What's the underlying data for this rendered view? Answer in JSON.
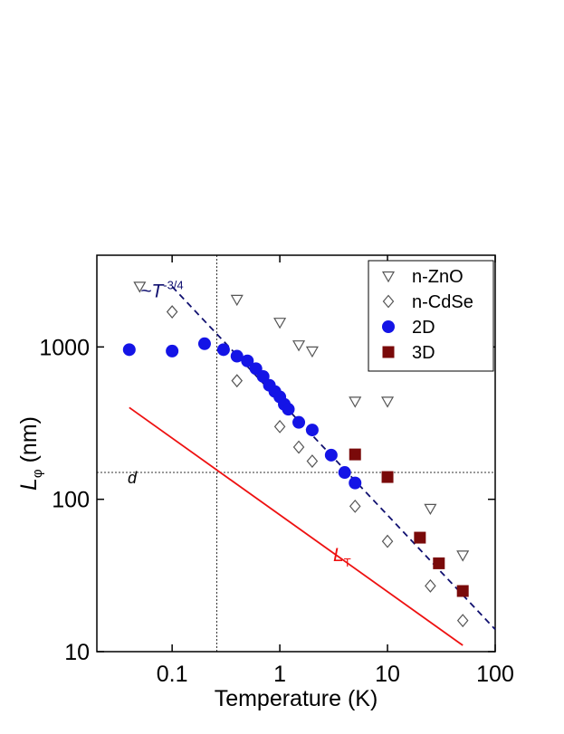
{
  "chart_data": {
    "type": "scatter",
    "x_label": "Temperature (K)",
    "y_label": {
      "main": "L",
      "sub": "φ",
      "unit": " (nm)"
    },
    "log_x": true,
    "log_y": true,
    "xlim": [
      0.02,
      100
    ],
    "ylim": [
      10,
      4000
    ],
    "xticks": [
      0.1,
      1,
      10,
      100
    ],
    "yticks": [
      10,
      100,
      1000
    ],
    "legend": "top-right",
    "series": [
      {
        "name": "n-ZnO",
        "marker": "triangle-down",
        "color": "#555555",
        "x": [
          0.05,
          0.4,
          1,
          1.5,
          2,
          5,
          10,
          25,
          50
        ],
        "values": [
          2500,
          2050,
          1450,
          1030,
          940,
          440,
          440,
          87,
          43
        ]
      },
      {
        "name": "n-CdSe",
        "marker": "diamond",
        "color": "#555555",
        "x": [
          0.1,
          0.4,
          1,
          1.5,
          2,
          5,
          10,
          25,
          50
        ],
        "values": [
          1700,
          600,
          300,
          220,
          178,
          90,
          53,
          27,
          16
        ]
      },
      {
        "name": "2D",
        "marker": "circle",
        "color": "#1414e6",
        "x": [
          0.04,
          0.1,
          0.2,
          0.3,
          0.4,
          0.5,
          0.6,
          0.7,
          0.8,
          0.9,
          1,
          1.1,
          1.2,
          1.5,
          2,
          3,
          4,
          5
        ],
        "values": [
          960,
          940,
          1050,
          960,
          870,
          810,
          720,
          640,
          560,
          510,
          470,
          420,
          390,
          320,
          285,
          195,
          150,
          128
        ]
      },
      {
        "name": "3D",
        "marker": "square",
        "color": "#7a0a0a",
        "x": [
          5,
          10,
          20,
          30,
          50
        ],
        "values": [
          197,
          140,
          56,
          38,
          25
        ]
      }
    ],
    "lines": [
      {
        "x": [
          0.1,
          100
        ],
        "y": [
          2490,
          14
        ],
        "color": "#101070",
        "style": "dashed",
        "label": {
          "main": "~T",
          "sup": "-3/4"
        }
      },
      {
        "x": [
          0.04,
          50
        ],
        "y": [
          400,
          11
        ],
        "color": "#ee1111",
        "style": "solid",
        "label": {
          "main": "L",
          "sub": "T"
        }
      }
    ],
    "reference_lines": {
      "x": 0.26,
      "y": 150,
      "y_label": "d"
    }
  }
}
